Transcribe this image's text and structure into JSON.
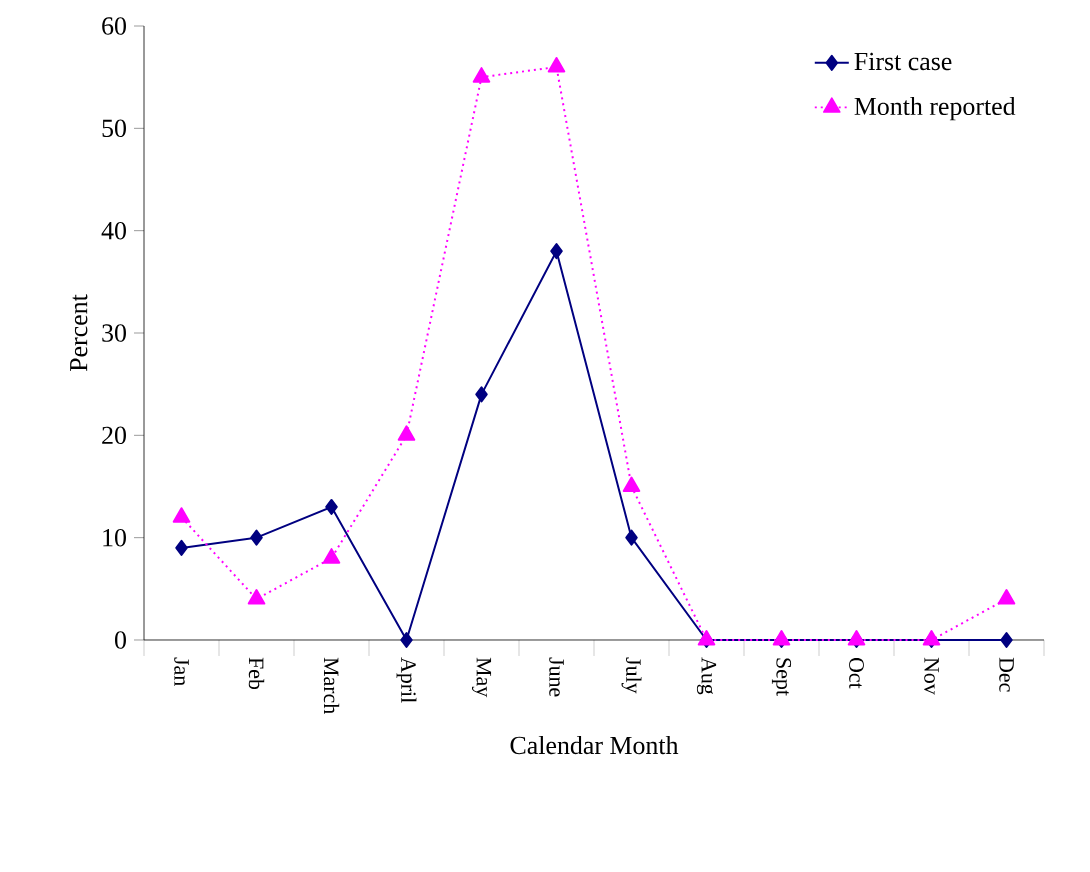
{
  "chart_data": {
    "type": "line",
    "xlabel": "Calendar Month",
    "ylabel": "Percent",
    "categories": [
      "Jan",
      "Feb",
      "March",
      "April",
      "May",
      "June",
      "July",
      "Aug",
      "Sept",
      "Oct",
      "Nov",
      "Dec"
    ],
    "series": [
      {
        "name": "First case",
        "color": "#000080",
        "marker": "diamond",
        "line_style": "solid",
        "values": [
          9,
          10,
          13,
          0,
          24,
          38,
          10,
          0,
          0,
          0,
          0,
          0
        ]
      },
      {
        "name": "Month reported",
        "color": "#ff00ff",
        "marker": "triangle",
        "line_style": "dotted",
        "values": [
          12,
          4,
          8,
          20,
          55,
          56,
          15,
          0,
          0,
          0,
          0,
          4
        ]
      }
    ],
    "ylim": [
      0,
      60
    ],
    "yticks": [
      0,
      10,
      20,
      30,
      40,
      50,
      60
    ],
    "grid": false,
    "legend": "top right"
  }
}
